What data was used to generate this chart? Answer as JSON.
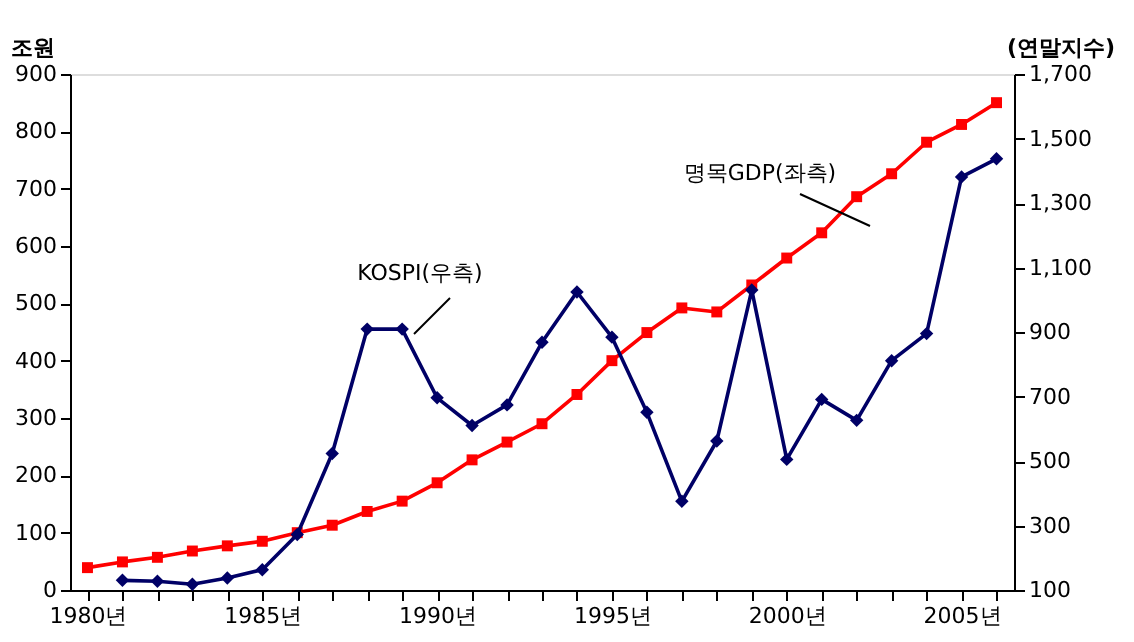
{
  "chart_data": {
    "type": "line",
    "ylabel": "조원",
    "y2label": "(연말지수)",
    "categories": [
      "1980년",
      null,
      null,
      null,
      null,
      "1985년",
      null,
      null,
      null,
      null,
      "1990년",
      null,
      null,
      null,
      null,
      "1995년",
      null,
      null,
      null,
      null,
      "2000년",
      null,
      null,
      null,
      null,
      "2005년",
      null
    ],
    "series": [
      {
        "name": "명목GDP(좌측)",
        "color": "#ff0000",
        "marker": "square",
        "values": [
          39,
          49,
          57,
          68,
          77,
          85,
          100,
          113,
          137,
          155,
          187,
          227,
          258,
          290,
          341,
          400,
          449,
          492,
          485,
          532,
          579,
          623,
          686,
          726,
          781,
          812,
          850
        ]
      },
      {
        "name": "KOSPI(우측)",
        "color": "#000066",
        "marker": "diamond",
        "axis": "y2",
        "values": [
          null,
          130,
          127,
          118,
          137,
          163,
          272,
          523,
          909,
          909,
          696,
          610,
          674,
          868,
          1024,
          884,
          651,
          375,
          562,
          1030,
          505,
          691,
          626,
          811,
          895,
          1381,
          1437
        ]
      }
    ],
    "ylim": [
      0,
      900
    ],
    "yticks": [
      0,
      100,
      200,
      300,
      400,
      500,
      600,
      700,
      800,
      900
    ],
    "y2lim": [
      100,
      1700
    ],
    "y2ticks": [
      {
        "value": 100,
        "label": "100"
      },
      {
        "value": 300,
        "label": "300"
      },
      {
        "value": 500,
        "label": "500"
      },
      {
        "value": 700,
        "label": "700"
      },
      {
        "value": 900,
        "label": "900"
      },
      {
        "value": 1100,
        "label": "1,100"
      },
      {
        "value": 1300,
        "label": "1,300"
      },
      {
        "value": 1500,
        "label": "1,500"
      },
      {
        "value": 1700,
        "label": "1,700"
      }
    ],
    "grid": false,
    "line_style": "solid"
  }
}
